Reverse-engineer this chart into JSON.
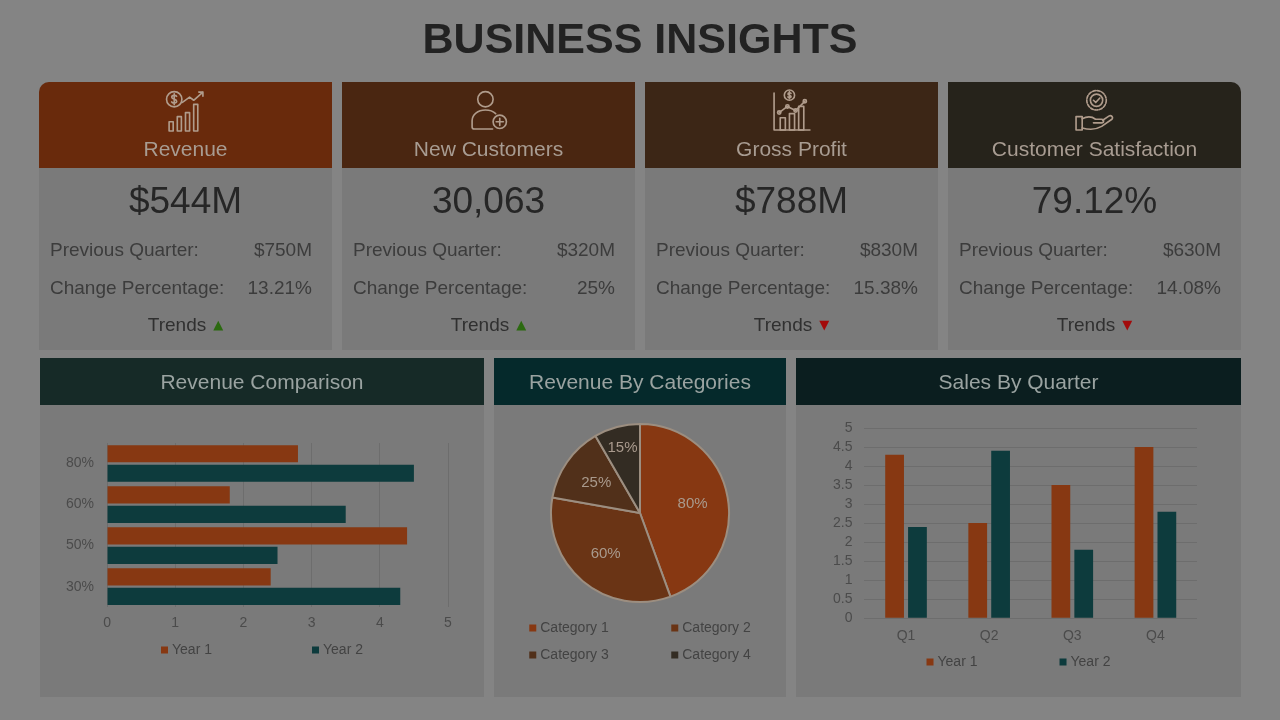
{
  "chart_data": [
    {
      "type": "other",
      "title": "BUSINESS INSIGHTS"
    },
    {
      "type": "other",
      "title": "Revenue",
      "annotations": [
        "$544M",
        "Previous Quarter:",
        "$750M",
        "Change Percentage:",
        "13.21%",
        "Trends",
        "▲"
      ],
      "color": "#2c6a10"
    },
    {
      "type": "other",
      "title": "New Customers",
      "annotations": [
        "30,063",
        "Previous Quarter:",
        "$320M",
        "Change Percentage:",
        "25%",
        "Trends",
        "▲"
      ],
      "color": "#2c6a10"
    },
    {
      "type": "other",
      "title": "Gross Profit",
      "annotations": [
        "$788M",
        "Previous Quarter:",
        "$830M",
        "Change Percentage:",
        "15.38%",
        "Trends",
        "▼"
      ],
      "color": "#a30a0a"
    },
    {
      "type": "other",
      "title": "Customer Satisfaction",
      "annotations": [
        "79.12%",
        "Previous Quarter:",
        "$630M",
        "Change Percentage:",
        "14.08%",
        "Trends",
        "▼"
      ],
      "color": "#a30a0a"
    },
    {
      "type": "bar",
      "title": "Revenue Comparison",
      "orientation": "horizontal",
      "categories": [
        "80%",
        "60%",
        "50%",
        "30%"
      ],
      "series": [
        {
          "name": "Year 1",
          "color": "#873812",
          "values": [
            2.8,
            1.8,
            4.4,
            2.4
          ]
        },
        {
          "name": "Year 2",
          "color": "#0d3b3d",
          "values": [
            4.5,
            3.5,
            2.5,
            4.3
          ]
        }
      ],
      "xlim": [
        0,
        5
      ],
      "xticks": [
        0,
        1,
        2,
        3,
        4,
        5
      ],
      "grid": "x",
      "legend": "bottom"
    },
    {
      "type": "pie",
      "title": "Revenue By Categories",
      "categories": [
        "Category 1",
        "Category 2",
        "Category 3",
        "Category 4"
      ],
      "values": [
        80,
        60,
        25,
        15
      ],
      "value_labels": [
        "80%",
        "60%",
        "25%",
        "15%"
      ],
      "colors": [
        "#873812",
        "#6a3415",
        "#51301a",
        "#332c23"
      ],
      "legend": "bottom"
    },
    {
      "type": "bar",
      "title": "Sales By Quarter",
      "categories": [
        "Q1",
        "Q2",
        "Q3",
        "Q4"
      ],
      "series": [
        {
          "name": "Year 1",
          "color": "#873812",
          "values": [
            4.3,
            2.5,
            3.5,
            4.5
          ]
        },
        {
          "name": "Year 2",
          "color": "#0d3b3d",
          "values": [
            2.4,
            4.4,
            1.8,
            2.8
          ]
        }
      ],
      "ylim": [
        0,
        5
      ],
      "yticks": [
        0,
        0.5,
        1,
        1.5,
        2,
        2.5,
        3,
        3.5,
        4,
        4.5,
        5
      ],
      "grid": "y",
      "legend": "bottom"
    }
  ]
}
